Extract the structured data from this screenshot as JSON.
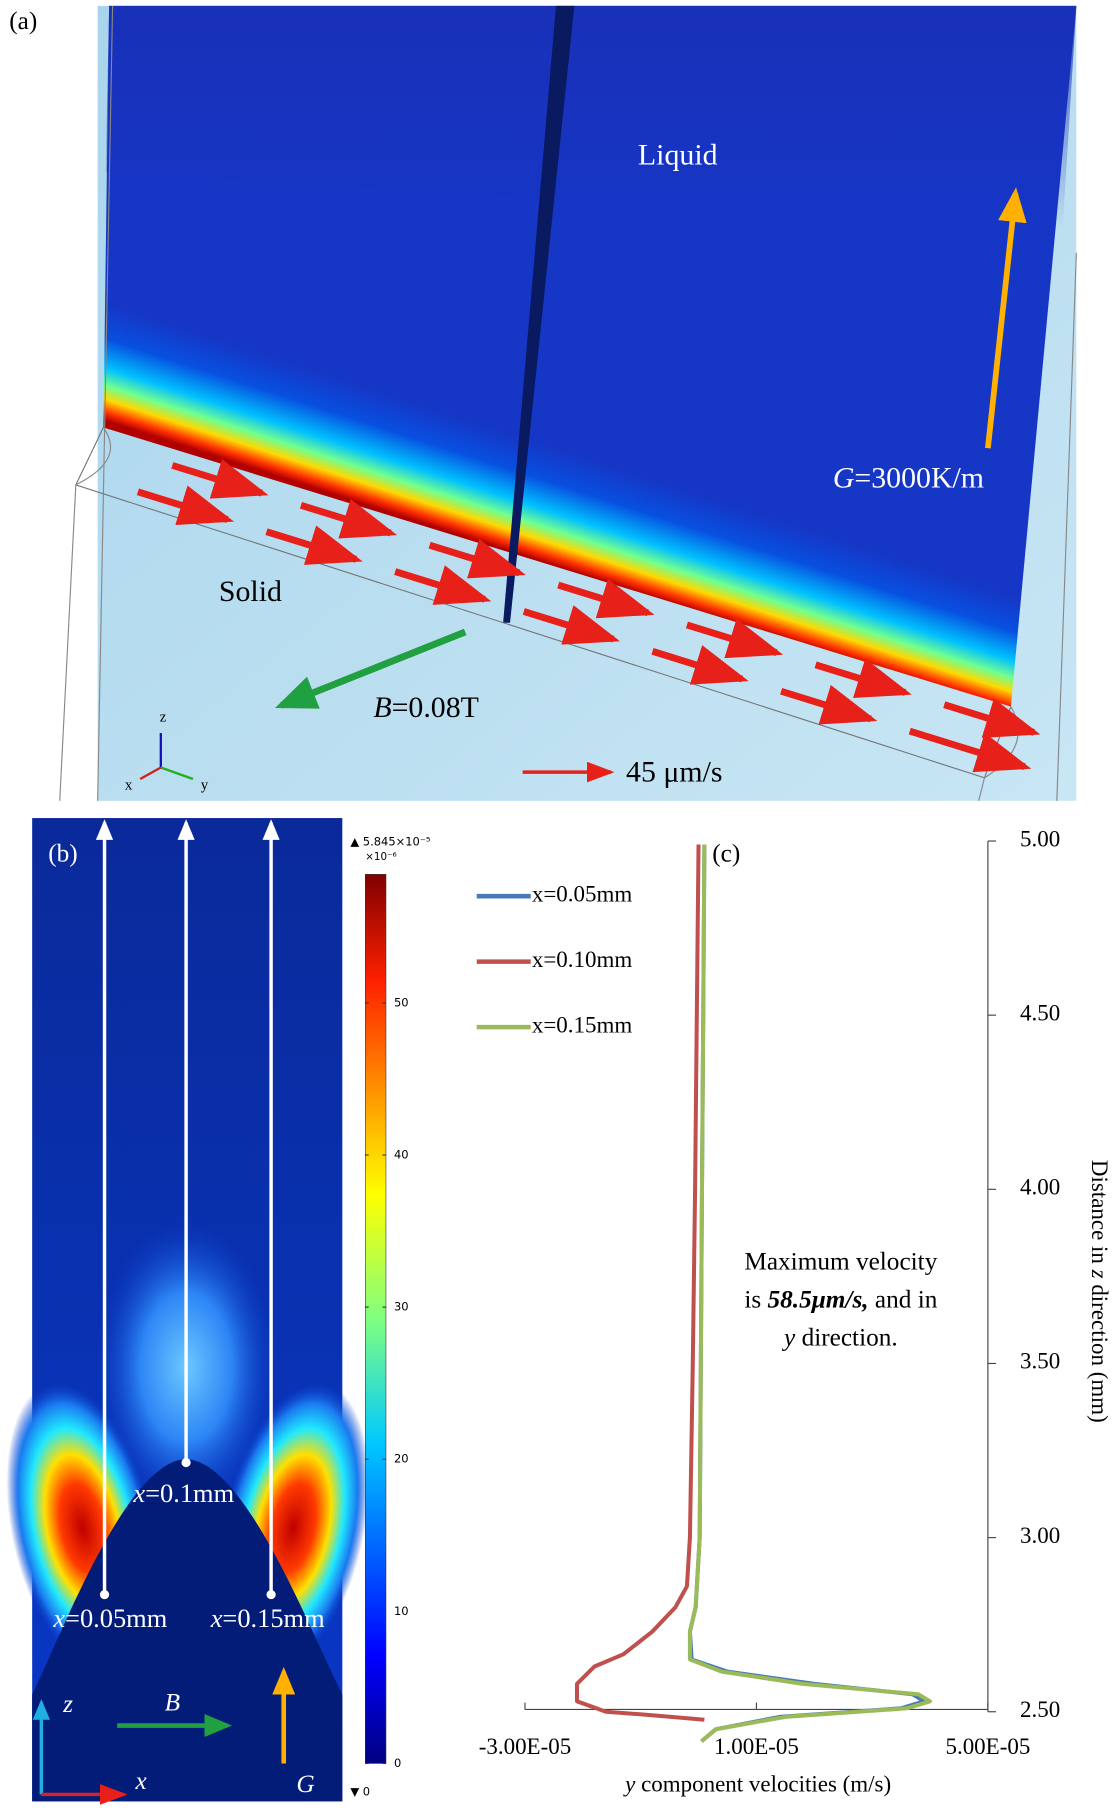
{
  "panel_a": {
    "label": "(a)",
    "liquid": "Liquid",
    "solid": "Solid",
    "gradient_symbol": "G",
    "gradient_value": "=3000K/m",
    "field_symbol": "B",
    "field_value": "=0.08T",
    "velocity_scale": "45 μm/s",
    "axis_z": "z",
    "axis_x": "x",
    "axis_y": "y"
  },
  "panel_b": {
    "label": "(b)",
    "probes": [
      {
        "symbol": "x",
        "value": "=0.05mm"
      },
      {
        "symbol": "x",
        "value": "=0.1mm"
      },
      {
        "symbol": "x",
        "value": "=0.15mm"
      }
    ],
    "axis_z": "z",
    "axis_x": "x",
    "field": "B",
    "gradient": "G",
    "colorbar": {
      "max_label": "▲ 5.845×10⁻⁵",
      "unit_label": "×10⁻⁶",
      "min_label": "▼ 0",
      "lim": [
        0,
        58.45
      ],
      "ticks": [
        0,
        10,
        20,
        30,
        40,
        50
      ]
    }
  },
  "chart_data": {
    "type": "line",
    "label": "(c)",
    "x_label": {
      "symbol": "y",
      "text": " component velocities (m/s)"
    },
    "y_label": {
      "before": "Distance in ",
      "symbol": "z",
      "after": " direction (mm)"
    },
    "annotation": {
      "line1": "Maximum velocity",
      "line2_before": "is ",
      "line2_bold": "58.5μm/s,",
      "line2_after": " and in",
      "line3_symbol": "y",
      "line3_after": " direction."
    },
    "xlim": [
      -3e-05,
      5e-05
    ],
    "xticks": [
      {
        "value": -3e-05,
        "label": "-3.00E-05"
      },
      {
        "value": 1e-05,
        "label": "1.00E-05"
      },
      {
        "value": 5e-05,
        "label": "5.00E-05"
      }
    ],
    "ylim": [
      2.5,
      5.0
    ],
    "yticks": [
      {
        "value": 2.5,
        "label": "2.50"
      },
      {
        "value": 3.0,
        "label": "3.00"
      },
      {
        "value": 3.5,
        "label": "3.50"
      },
      {
        "value": 4.0,
        "label": "4.00"
      },
      {
        "value": 4.5,
        "label": "4.50"
      },
      {
        "value": 5.0,
        "label": "5.00"
      }
    ],
    "series": [
      {
        "name": "x=0.05mm",
        "color": "#4a7ab5",
        "x": [
          1e-06,
          8e-07,
          6e-07,
          4e-07,
          2e-07,
          -5e-07,
          -1.5e-06,
          -1.2e-06,
          5e-06,
          2e-05,
          3.7e-05,
          3.9e-05,
          3.5e-05,
          1.4e-05,
          3e-06,
          5e-07
        ],
        "values": [
          4.99,
          4.5,
          4.0,
          3.5,
          3.0,
          2.8,
          2.73,
          2.65,
          2.615,
          2.58,
          2.55,
          2.53,
          2.51,
          2.485,
          2.45,
          2.415
        ]
      },
      {
        "name": "x=0.10mm",
        "color": "#c0504d",
        "x": [
          0,
          -3e-07,
          -6e-07,
          -1e-06,
          -1.5e-06,
          -2e-06,
          -4e-06,
          -8e-06,
          -1.3e-05,
          -1.8e-05,
          -2.1e-05,
          -2.1e-05,
          -1.6e-05,
          -8e-06,
          1e-06
        ],
        "values": [
          4.99,
          4.5,
          4.0,
          3.5,
          3.0,
          2.86,
          2.8,
          2.73,
          2.665,
          2.63,
          2.58,
          2.53,
          2.5,
          2.49,
          2.477
        ]
      },
      {
        "name": "x=0.15mm",
        "color": "#9bbb59",
        "x": [
          1e-06,
          8e-07,
          6e-07,
          4e-07,
          2e-07,
          -5e-07,
          -1.5e-06,
          -1.5e-06,
          4e-06,
          1.8e-05,
          3.8e-05,
          4e-05,
          3.6e-05,
          1.5e-05,
          3e-06,
          5e-07
        ],
        "values": [
          4.99,
          4.5,
          4.0,
          3.5,
          3.0,
          2.8,
          2.73,
          2.65,
          2.615,
          2.58,
          2.55,
          2.53,
          2.51,
          2.485,
          2.45,
          2.415
        ]
      }
    ]
  }
}
